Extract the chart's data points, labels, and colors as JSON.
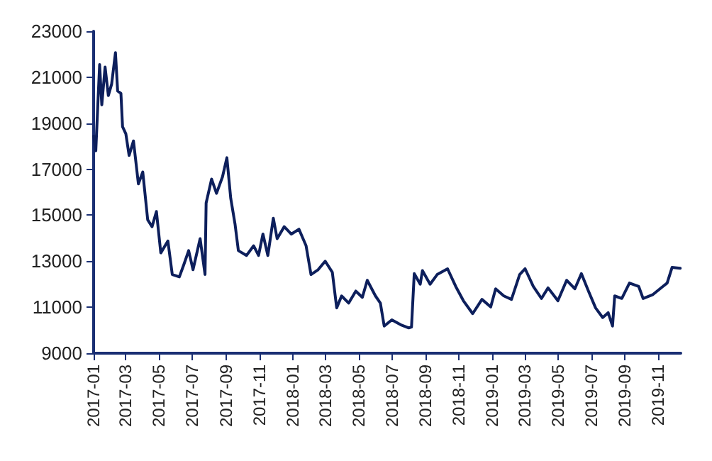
{
  "chart_data": {
    "type": "line",
    "grid": false,
    "marker": "none",
    "line_style": "solid",
    "x": [
      "2017-01-01",
      "2017-01-05",
      "2017-01-12",
      "2017-01-16",
      "2017-01-22",
      "2017-01-28",
      "2017-02-03",
      "2017-02-10",
      "2017-02-14",
      "2017-02-20",
      "2017-02-23",
      "2017-03-01",
      "2017-03-07",
      "2017-03-15",
      "2017-03-24",
      "2017-04-01",
      "2017-04-10",
      "2017-04-18",
      "2017-04-26",
      "2017-05-04",
      "2017-05-17",
      "2017-05-25",
      "2017-06-07",
      "2017-06-15",
      "2017-06-24",
      "2017-07-02",
      "2017-07-15",
      "2017-07-24",
      "2017-07-26",
      "2017-08-05",
      "2017-08-14",
      "2017-08-25",
      "2017-09-02",
      "2017-09-09",
      "2017-09-17",
      "2017-09-23",
      "2017-10-08",
      "2017-10-21",
      "2017-10-30",
      "2017-11-07",
      "2017-11-16",
      "2017-11-26",
      "2017-12-03",
      "2017-12-16",
      "2017-12-29",
      "2018-01-12",
      "2018-01-25",
      "2018-02-03",
      "2018-02-16",
      "2018-03-01",
      "2018-03-14",
      "2018-03-22",
      "2018-03-31",
      "2018-04-13",
      "2018-04-26",
      "2018-05-08",
      "2018-05-17",
      "2018-06-01",
      "2018-06-10",
      "2018-06-17",
      "2018-07-01",
      "2018-07-17",
      "2018-08-01",
      "2018-08-06",
      "2018-08-11",
      "2018-08-22",
      "2018-08-26",
      "2018-09-09",
      "2018-09-22",
      "2018-10-11",
      "2018-10-26",
      "2018-11-09",
      "2018-11-26",
      "2018-12-13",
      "2018-12-29",
      "2019-01-07",
      "2019-01-22",
      "2019-02-05",
      "2019-02-20",
      "2019-03-02",
      "2019-03-17",
      "2019-04-01",
      "2019-04-13",
      "2019-05-01",
      "2019-05-17",
      "2019-06-01",
      "2019-06-13",
      "2019-06-26",
      "2019-07-09",
      "2019-07-22",
      "2019-08-01",
      "2019-08-09",
      "2019-08-13",
      "2019-08-26",
      "2019-09-09",
      "2019-09-26",
      "2019-10-04",
      "2019-10-22",
      "2019-11-09",
      "2019-11-17",
      "2019-11-26",
      "2019-12-11"
    ],
    "series": [
      {
        "color": "#0d1f5c",
        "values": [
          18440,
          17800,
          21550,
          19800,
          21440,
          20200,
          20700,
          22070,
          20400,
          20300,
          18850,
          18540,
          17600,
          18230,
          16360,
          16880,
          14800,
          14500,
          15160,
          13360,
          13880,
          12420,
          12320,
          12840,
          13460,
          12630,
          13980,
          12420,
          15530,
          16570,
          15950,
          16670,
          17500,
          15740,
          14600,
          13460,
          13250,
          13670,
          13250,
          14180,
          13250,
          14870,
          13980,
          14500,
          14180,
          14390,
          13670,
          12420,
          12630,
          13000,
          12520,
          10970,
          11490,
          11180,
          11700,
          11430,
          12170,
          11490,
          11180,
          10180,
          10450,
          10240,
          10100,
          10140,
          12460,
          12000,
          12590,
          12000,
          12420,
          12670,
          11900,
          11280,
          10720,
          11340,
          11010,
          11800,
          11490,
          11340,
          12420,
          12670,
          11900,
          11380,
          11840,
          11280,
          12170,
          11800,
          12460,
          11700,
          10970,
          10550,
          10760,
          10180,
          11490,
          11380,
          12050,
          11900,
          11380,
          11550,
          11900,
          12050,
          12730,
          12690
        ]
      }
    ],
    "xlim": [
      "2017-01-01",
      "2019-12-12"
    ],
    "xticks": [
      {
        "value": "2017-01-01",
        "label": "2017-01"
      },
      {
        "value": "2017-03-01",
        "label": "2017-03"
      },
      {
        "value": "2017-05-01",
        "label": "2017-05"
      },
      {
        "value": "2017-07-01",
        "label": "2017-07"
      },
      {
        "value": "2017-09-01",
        "label": "2017-09"
      },
      {
        "value": "2017-11-01",
        "label": "2017-11"
      },
      {
        "value": "2018-01-01",
        "label": "2018-01"
      },
      {
        "value": "2018-03-01",
        "label": "2018-03"
      },
      {
        "value": "2018-05-01",
        "label": "2018-05"
      },
      {
        "value": "2018-07-01",
        "label": "2018-07"
      },
      {
        "value": "2018-09-01",
        "label": "2018-09"
      },
      {
        "value": "2018-11-01",
        "label": "2018-11"
      },
      {
        "value": "2019-01-01",
        "label": "2019-01"
      },
      {
        "value": "2019-03-01",
        "label": "2019-03"
      },
      {
        "value": "2019-05-01",
        "label": "2019-05"
      },
      {
        "value": "2019-07-01",
        "label": "2019-07"
      },
      {
        "value": "2019-09-01",
        "label": "2019-09"
      },
      {
        "value": "2019-11-01",
        "label": "2019-11"
      }
    ],
    "ylim": [
      9000,
      23000
    ],
    "yticks": [
      9000,
      11000,
      13000,
      15000,
      17000,
      19000,
      21000,
      23000
    ]
  }
}
